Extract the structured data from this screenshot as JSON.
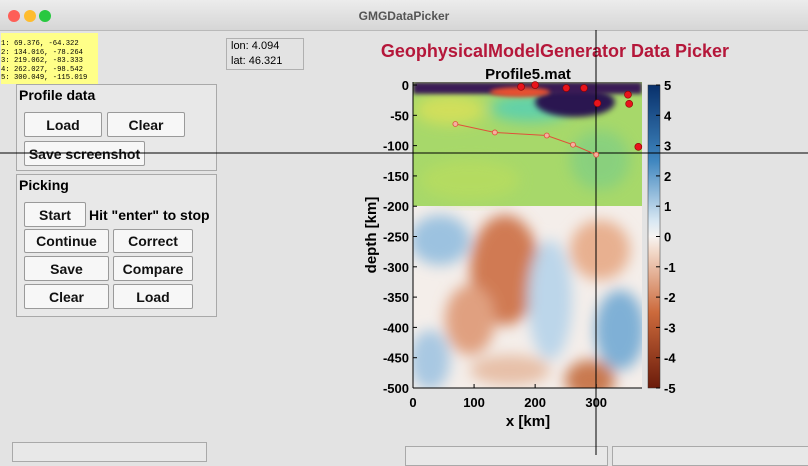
{
  "window": {
    "title": "GMGDataPicker"
  },
  "picked_list": [
    "1: 69.376, -64.322",
    "2: 134.016, -78.264",
    "3: 219.062, -83.333",
    "4: 262.027, -98.542",
    "5: 300.049, -115.019"
  ],
  "coords": {
    "lon": "lon: 4.094",
    "lat": "lat: 46.321"
  },
  "app_title": "GeophysicalModelGenerator Data Picker",
  "profile_panel": {
    "title": "Profile data",
    "buttons": [
      "Load",
      "Clear",
      "Save screenshot"
    ]
  },
  "picking_panel": {
    "title": "Picking",
    "start": "Start",
    "hint": "Hit \"enter\" to stop",
    "buttons": [
      "Continue",
      "Correct",
      "Save",
      "Compare",
      "Clear",
      "Load"
    ]
  },
  "plot": {
    "title": "Profile5.mat",
    "xlabel": "x [km]",
    "ylabel": "depth [km]",
    "xlim": [
      0,
      375
    ],
    "ylim": [
      -500,
      5
    ],
    "xticks": [
      0,
      100,
      200,
      300
    ],
    "yticks": [
      0,
      -50,
      -100,
      -150,
      -200,
      -250,
      -300,
      -350,
      -400,
      -450,
      -500
    ],
    "colorbar": {
      "lim": [
        -5,
        5
      ],
      "ticks": [
        5,
        4,
        3,
        2,
        1,
        0,
        -1,
        -2,
        -3,
        -4,
        -5
      ]
    },
    "picked_line": {
      "x": [
        69.376,
        134.016,
        219.062,
        262.027,
        300.049
      ],
      "y": [
        -64.322,
        -78.264,
        -83.333,
        -98.542,
        -115.019
      ]
    },
    "dots": {
      "x": [
        177,
        200,
        251,
        280,
        302,
        352,
        354,
        369
      ],
      "y": [
        -3,
        0,
        -5,
        -5,
        -30,
        -16,
        -31,
        -102
      ]
    }
  }
}
